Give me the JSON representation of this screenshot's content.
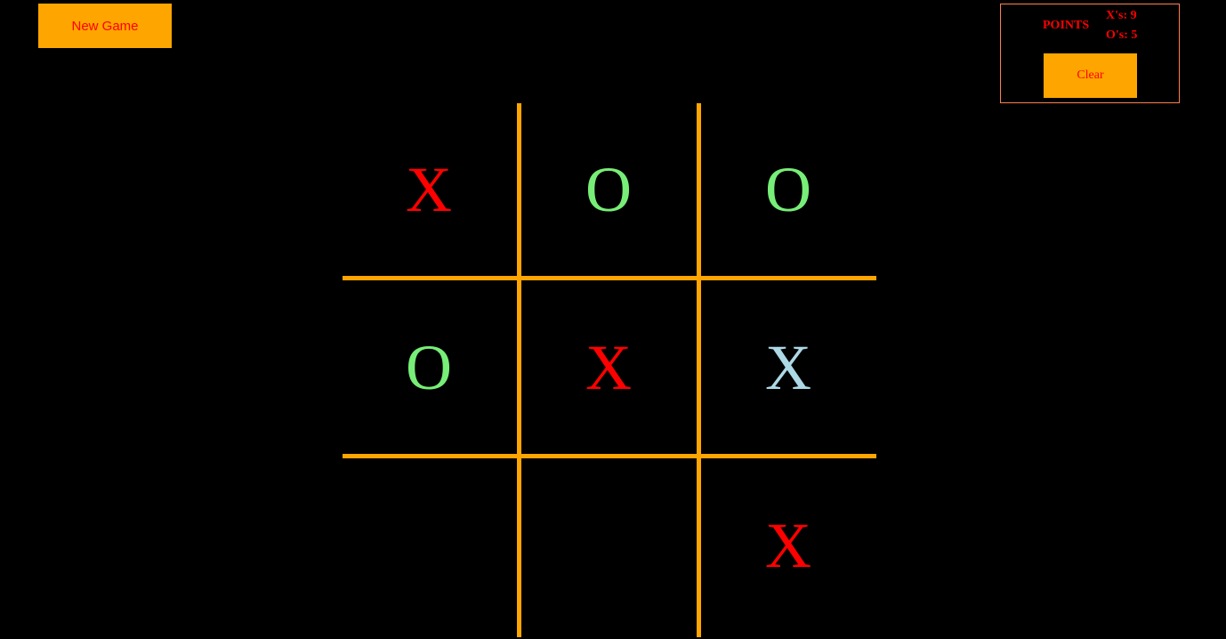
{
  "controls": {
    "new_game_label": "New Game"
  },
  "points": {
    "title": "POINTS",
    "x_score": "X's: 9",
    "o_score": "O's: 5",
    "clear_label": "Clear"
  },
  "board": {
    "cells": [
      {
        "mark": "X",
        "color": "#FF0000"
      },
      {
        "mark": "O",
        "color": "#77EE77"
      },
      {
        "mark": "O",
        "color": "#77EE77"
      },
      {
        "mark": "O",
        "color": "#77EE77"
      },
      {
        "mark": "X",
        "color": "#FF0000"
      },
      {
        "mark": "X",
        "color": "#ADD8E6"
      },
      {
        "mark": "",
        "color": "#FF0000"
      },
      {
        "mark": "",
        "color": "#FF0000"
      },
      {
        "mark": "X",
        "color": "#FF0000"
      }
    ],
    "grid_color": "#FFA500"
  },
  "colors": {
    "background": "#000000",
    "button_bg": "#FFA500",
    "button_text": "#FF0000",
    "panel_border": "#FF7F50"
  }
}
